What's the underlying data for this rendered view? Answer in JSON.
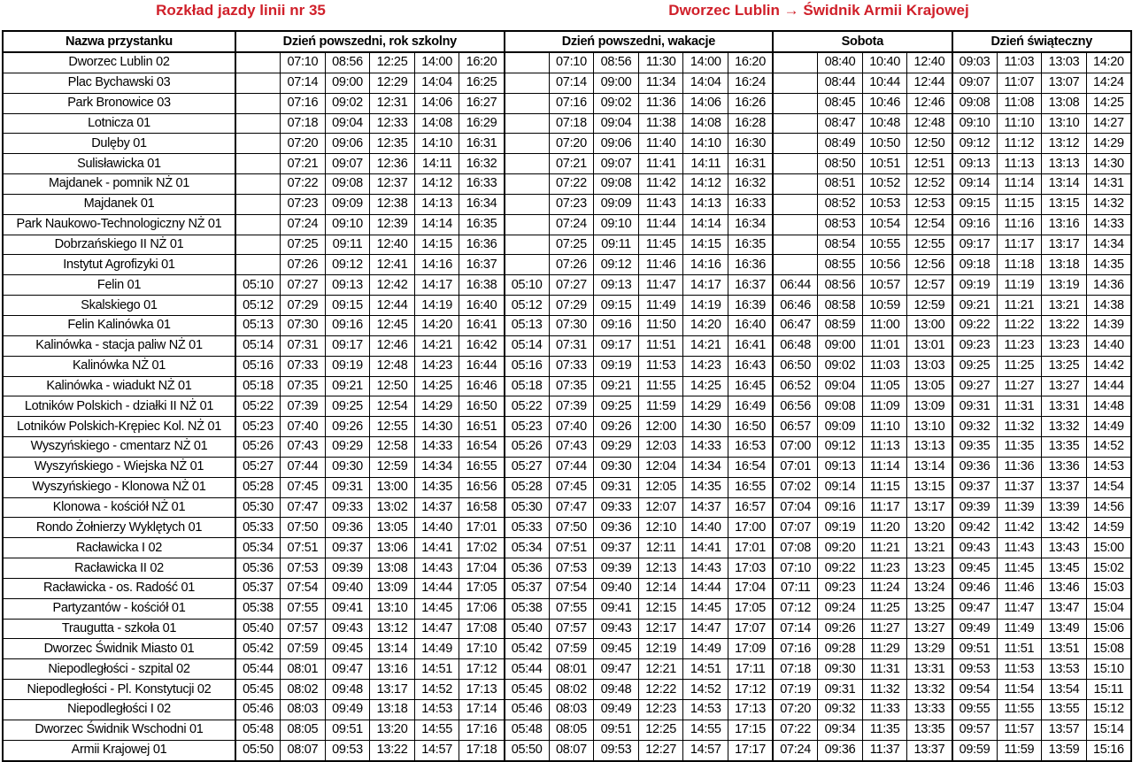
{
  "title_left": "Rozkład jazdy linii nr 35",
  "title_right": "Dworzec Lublin → Świdnik Armii Krajowej",
  "accent_color": "#d0202a",
  "headers": {
    "stop_name": "Nazwa przystanku",
    "groups": [
      {
        "label": "Dzień powszedni, rok szkolny",
        "columns": 6
      },
      {
        "label": "Dzień powszedni, wakacje",
        "columns": 6
      },
      {
        "label": "Sobota",
        "columns": 4
      },
      {
        "label": "Dzień świąteczny",
        "columns": 4
      }
    ]
  },
  "rows": [
    {
      "stop": "Dworzec Lublin 02",
      "times": [
        "",
        "07:10",
        "08:56",
        "12:25",
        "14:00",
        "16:20",
        "",
        "07:10",
        "08:56",
        "11:30",
        "14:00",
        "16:20",
        "",
        "08:40",
        "10:40",
        "12:40",
        "09:03",
        "11:03",
        "13:03",
        "14:20"
      ]
    },
    {
      "stop": "Plac Bychawski 03",
      "times": [
        "",
        "07:14",
        "09:00",
        "12:29",
        "14:04",
        "16:25",
        "",
        "07:14",
        "09:00",
        "11:34",
        "14:04",
        "16:24",
        "",
        "08:44",
        "10:44",
        "12:44",
        "09:07",
        "11:07",
        "13:07",
        "14:24"
      ]
    },
    {
      "stop": "Park Bronowice 03",
      "times": [
        "",
        "07:16",
        "09:02",
        "12:31",
        "14:06",
        "16:27",
        "",
        "07:16",
        "09:02",
        "11:36",
        "14:06",
        "16:26",
        "",
        "08:45",
        "10:46",
        "12:46",
        "09:08",
        "11:08",
        "13:08",
        "14:25"
      ]
    },
    {
      "stop": "Lotnicza 01",
      "times": [
        "",
        "07:18",
        "09:04",
        "12:33",
        "14:08",
        "16:29",
        "",
        "07:18",
        "09:04",
        "11:38",
        "14:08",
        "16:28",
        "",
        "08:47",
        "10:48",
        "12:48",
        "09:10",
        "11:10",
        "13:10",
        "14:27"
      ]
    },
    {
      "stop": "Dulęby 01",
      "times": [
        "",
        "07:20",
        "09:06",
        "12:35",
        "14:10",
        "16:31",
        "",
        "07:20",
        "09:06",
        "11:40",
        "14:10",
        "16:30",
        "",
        "08:49",
        "10:50",
        "12:50",
        "09:12",
        "11:12",
        "13:12",
        "14:29"
      ]
    },
    {
      "stop": "Sulisławicka 01",
      "times": [
        "",
        "07:21",
        "09:07",
        "12:36",
        "14:11",
        "16:32",
        "",
        "07:21",
        "09:07",
        "11:41",
        "14:11",
        "16:31",
        "",
        "08:50",
        "10:51",
        "12:51",
        "09:13",
        "11:13",
        "13:13",
        "14:30"
      ]
    },
    {
      "stop": "Majdanek - pomnik NŻ 01",
      "times": [
        "",
        "07:22",
        "09:08",
        "12:37",
        "14:12",
        "16:33",
        "",
        "07:22",
        "09:08",
        "11:42",
        "14:12",
        "16:32",
        "",
        "08:51",
        "10:52",
        "12:52",
        "09:14",
        "11:14",
        "13:14",
        "14:31"
      ]
    },
    {
      "stop": "Majdanek 01",
      "times": [
        "",
        "07:23",
        "09:09",
        "12:38",
        "14:13",
        "16:34",
        "",
        "07:23",
        "09:09",
        "11:43",
        "14:13",
        "16:33",
        "",
        "08:52",
        "10:53",
        "12:53",
        "09:15",
        "11:15",
        "13:15",
        "14:32"
      ]
    },
    {
      "stop": "Park Naukowo-Technologiczny NŻ 01",
      "times": [
        "",
        "07:24",
        "09:10",
        "12:39",
        "14:14",
        "16:35",
        "",
        "07:24",
        "09:10",
        "11:44",
        "14:14",
        "16:34",
        "",
        "08:53",
        "10:54",
        "12:54",
        "09:16",
        "11:16",
        "13:16",
        "14:33"
      ]
    },
    {
      "stop": "Dobrzańskiego II NŻ 01",
      "times": [
        "",
        "07:25",
        "09:11",
        "12:40",
        "14:15",
        "16:36",
        "",
        "07:25",
        "09:11",
        "11:45",
        "14:15",
        "16:35",
        "",
        "08:54",
        "10:55",
        "12:55",
        "09:17",
        "11:17",
        "13:17",
        "14:34"
      ]
    },
    {
      "stop": "Instytut Agrofizyki 01",
      "times": [
        "",
        "07:26",
        "09:12",
        "12:41",
        "14:16",
        "16:37",
        "",
        "07:26",
        "09:12",
        "11:46",
        "14:16",
        "16:36",
        "",
        "08:55",
        "10:56",
        "12:56",
        "09:18",
        "11:18",
        "13:18",
        "14:35"
      ]
    },
    {
      "stop": "Felin 01",
      "times": [
        "05:10",
        "07:27",
        "09:13",
        "12:42",
        "14:17",
        "16:38",
        "05:10",
        "07:27",
        "09:13",
        "11:47",
        "14:17",
        "16:37",
        "06:44",
        "08:56",
        "10:57",
        "12:57",
        "09:19",
        "11:19",
        "13:19",
        "14:36"
      ]
    },
    {
      "stop": "Skalskiego 01",
      "times": [
        "05:12",
        "07:29",
        "09:15",
        "12:44",
        "14:19",
        "16:40",
        "05:12",
        "07:29",
        "09:15",
        "11:49",
        "14:19",
        "16:39",
        "06:46",
        "08:58",
        "10:59",
        "12:59",
        "09:21",
        "11:21",
        "13:21",
        "14:38"
      ]
    },
    {
      "stop": "Felin Kalinówka 01",
      "times": [
        "05:13",
        "07:30",
        "09:16",
        "12:45",
        "14:20",
        "16:41",
        "05:13",
        "07:30",
        "09:16",
        "11:50",
        "14:20",
        "16:40",
        "06:47",
        "08:59",
        "11:00",
        "13:00",
        "09:22",
        "11:22",
        "13:22",
        "14:39"
      ]
    },
    {
      "stop": "Kalinówka - stacja paliw NŻ 01",
      "times": [
        "05:14",
        "07:31",
        "09:17",
        "12:46",
        "14:21",
        "16:42",
        "05:14",
        "07:31",
        "09:17",
        "11:51",
        "14:21",
        "16:41",
        "06:48",
        "09:00",
        "11:01",
        "13:01",
        "09:23",
        "11:23",
        "13:23",
        "14:40"
      ]
    },
    {
      "stop": "Kalinówka NŻ 01",
      "times": [
        "05:16",
        "07:33",
        "09:19",
        "12:48",
        "14:23",
        "16:44",
        "05:16",
        "07:33",
        "09:19",
        "11:53",
        "14:23",
        "16:43",
        "06:50",
        "09:02",
        "11:03",
        "13:03",
        "09:25",
        "11:25",
        "13:25",
        "14:42"
      ]
    },
    {
      "stop": "Kalinówka - wiadukt NŻ 01",
      "times": [
        "05:18",
        "07:35",
        "09:21",
        "12:50",
        "14:25",
        "16:46",
        "05:18",
        "07:35",
        "09:21",
        "11:55",
        "14:25",
        "16:45",
        "06:52",
        "09:04",
        "11:05",
        "13:05",
        "09:27",
        "11:27",
        "13:27",
        "14:44"
      ]
    },
    {
      "stop": "Lotników Polskich - działki II NŻ 01",
      "times": [
        "05:22",
        "07:39",
        "09:25",
        "12:54",
        "14:29",
        "16:50",
        "05:22",
        "07:39",
        "09:25",
        "11:59",
        "14:29",
        "16:49",
        "06:56",
        "09:08",
        "11:09",
        "13:09",
        "09:31",
        "11:31",
        "13:31",
        "14:48"
      ]
    },
    {
      "stop": "Lotników Polskich-Krępiec Kol. NŻ 01",
      "times": [
        "05:23",
        "07:40",
        "09:26",
        "12:55",
        "14:30",
        "16:51",
        "05:23",
        "07:40",
        "09:26",
        "12:00",
        "14:30",
        "16:50",
        "06:57",
        "09:09",
        "11:10",
        "13:10",
        "09:32",
        "11:32",
        "13:32",
        "14:49"
      ]
    },
    {
      "stop": "Wyszyńskiego - cmentarz NŻ 01",
      "times": [
        "05:26",
        "07:43",
        "09:29",
        "12:58",
        "14:33",
        "16:54",
        "05:26",
        "07:43",
        "09:29",
        "12:03",
        "14:33",
        "16:53",
        "07:00",
        "09:12",
        "11:13",
        "13:13",
        "09:35",
        "11:35",
        "13:35",
        "14:52"
      ]
    },
    {
      "stop": "Wyszyńskiego - Wiejska NŻ 01",
      "times": [
        "05:27",
        "07:44",
        "09:30",
        "12:59",
        "14:34",
        "16:55",
        "05:27",
        "07:44",
        "09:30",
        "12:04",
        "14:34",
        "16:54",
        "07:01",
        "09:13",
        "11:14",
        "13:14",
        "09:36",
        "11:36",
        "13:36",
        "14:53"
      ]
    },
    {
      "stop": "Wyszyńskiego - Klonowa NŻ 01",
      "times": [
        "05:28",
        "07:45",
        "09:31",
        "13:00",
        "14:35",
        "16:56",
        "05:28",
        "07:45",
        "09:31",
        "12:05",
        "14:35",
        "16:55",
        "07:02",
        "09:14",
        "11:15",
        "13:15",
        "09:37",
        "11:37",
        "13:37",
        "14:54"
      ]
    },
    {
      "stop": "Klonowa - kościół NŻ 01",
      "times": [
        "05:30",
        "07:47",
        "09:33",
        "13:02",
        "14:37",
        "16:58",
        "05:30",
        "07:47",
        "09:33",
        "12:07",
        "14:37",
        "16:57",
        "07:04",
        "09:16",
        "11:17",
        "13:17",
        "09:39",
        "11:39",
        "13:39",
        "14:56"
      ]
    },
    {
      "stop": "Rondo Żołnierzy Wyklętych 01",
      "times": [
        "05:33",
        "07:50",
        "09:36",
        "13:05",
        "14:40",
        "17:01",
        "05:33",
        "07:50",
        "09:36",
        "12:10",
        "14:40",
        "17:00",
        "07:07",
        "09:19",
        "11:20",
        "13:20",
        "09:42",
        "11:42",
        "13:42",
        "14:59"
      ]
    },
    {
      "stop": "Racławicka I 02",
      "times": [
        "05:34",
        "07:51",
        "09:37",
        "13:06",
        "14:41",
        "17:02",
        "05:34",
        "07:51",
        "09:37",
        "12:11",
        "14:41",
        "17:01",
        "07:08",
        "09:20",
        "11:21",
        "13:21",
        "09:43",
        "11:43",
        "13:43",
        "15:00"
      ]
    },
    {
      "stop": "Racławicka II 02",
      "times": [
        "05:36",
        "07:53",
        "09:39",
        "13:08",
        "14:43",
        "17:04",
        "05:36",
        "07:53",
        "09:39",
        "12:13",
        "14:43",
        "17:03",
        "07:10",
        "09:22",
        "11:23",
        "13:23",
        "09:45",
        "11:45",
        "13:45",
        "15:02"
      ]
    },
    {
      "stop": "Racławicka - os. Radość 01",
      "times": [
        "05:37",
        "07:54",
        "09:40",
        "13:09",
        "14:44",
        "17:05",
        "05:37",
        "07:54",
        "09:40",
        "12:14",
        "14:44",
        "17:04",
        "07:11",
        "09:23",
        "11:24",
        "13:24",
        "09:46",
        "11:46",
        "13:46",
        "15:03"
      ]
    },
    {
      "stop": "Partyzantów - kościół 01",
      "times": [
        "05:38",
        "07:55",
        "09:41",
        "13:10",
        "14:45",
        "17:06",
        "05:38",
        "07:55",
        "09:41",
        "12:15",
        "14:45",
        "17:05",
        "07:12",
        "09:24",
        "11:25",
        "13:25",
        "09:47",
        "11:47",
        "13:47",
        "15:04"
      ]
    },
    {
      "stop": "Traugutta - szkoła 01",
      "times": [
        "05:40",
        "07:57",
        "09:43",
        "13:12",
        "14:47",
        "17:08",
        "05:40",
        "07:57",
        "09:43",
        "12:17",
        "14:47",
        "17:07",
        "07:14",
        "09:26",
        "11:27",
        "13:27",
        "09:49",
        "11:49",
        "13:49",
        "15:06"
      ]
    },
    {
      "stop": "Dworzec Świdnik Miasto 01",
      "times": [
        "05:42",
        "07:59",
        "09:45",
        "13:14",
        "14:49",
        "17:10",
        "05:42",
        "07:59",
        "09:45",
        "12:19",
        "14:49",
        "17:09",
        "07:16",
        "09:28",
        "11:29",
        "13:29",
        "09:51",
        "11:51",
        "13:51",
        "15:08"
      ]
    },
    {
      "stop": "Niepodległości - szpital 02",
      "times": [
        "05:44",
        "08:01",
        "09:47",
        "13:16",
        "14:51",
        "17:12",
        "05:44",
        "08:01",
        "09:47",
        "12:21",
        "14:51",
        "17:11",
        "07:18",
        "09:30",
        "11:31",
        "13:31",
        "09:53",
        "11:53",
        "13:53",
        "15:10"
      ]
    },
    {
      "stop": "Niepodległości - Pl. Konstytucji 02",
      "times": [
        "05:45",
        "08:02",
        "09:48",
        "13:17",
        "14:52",
        "17:13",
        "05:45",
        "08:02",
        "09:48",
        "12:22",
        "14:52",
        "17:12",
        "07:19",
        "09:31",
        "11:32",
        "13:32",
        "09:54",
        "11:54",
        "13:54",
        "15:11"
      ]
    },
    {
      "stop": "Niepodległości I 02",
      "times": [
        "05:46",
        "08:03",
        "09:49",
        "13:18",
        "14:53",
        "17:14",
        "05:46",
        "08:03",
        "09:49",
        "12:23",
        "14:53",
        "17:13",
        "07:20",
        "09:32",
        "11:33",
        "13:33",
        "09:55",
        "11:55",
        "13:55",
        "15:12"
      ]
    },
    {
      "stop": "Dworzec Świdnik Wschodni 01",
      "times": [
        "05:48",
        "08:05",
        "09:51",
        "13:20",
        "14:55",
        "17:16",
        "05:48",
        "08:05",
        "09:51",
        "12:25",
        "14:55",
        "17:15",
        "07:22",
        "09:34",
        "11:35",
        "13:35",
        "09:57",
        "11:57",
        "13:57",
        "15:14"
      ]
    },
    {
      "stop": "Armii Krajowej 01",
      "times": [
        "05:50",
        "08:07",
        "09:53",
        "13:22",
        "14:57",
        "17:18",
        "05:50",
        "08:07",
        "09:53",
        "12:27",
        "14:57",
        "17:17",
        "07:24",
        "09:36",
        "11:37",
        "13:37",
        "09:59",
        "11:59",
        "13:59",
        "15:16"
      ]
    }
  ]
}
